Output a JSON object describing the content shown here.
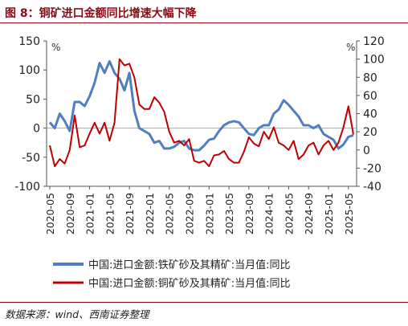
{
  "figure_title": "图 8：铜矿进口金额同比增速大幅下降",
  "source_note": "数据来源：wind、西南证券整理",
  "chart_data": {
    "type": "line",
    "left_unit": "%",
    "right_unit": "%",
    "left_axis": {
      "min": -100,
      "max": 150,
      "ticks": [
        -100,
        -50,
        0,
        50,
        100,
        150
      ]
    },
    "right_axis": {
      "min": -40,
      "max": 120,
      "ticks": [
        -40,
        -20,
        0,
        20,
        40,
        60,
        80,
        100,
        120
      ]
    },
    "x_ticks": [
      "2020-05",
      "2020-09",
      "2021-01",
      "2021-05",
      "2021-09",
      "2022-01",
      "2022-05",
      "2022-09",
      "2023-01",
      "2023-05",
      "2023-09",
      "2024-01",
      "2024-05",
      "2024-09",
      "2025-01",
      "2025-05"
    ],
    "months": [
      "2020-05",
      "2020-06",
      "2020-07",
      "2020-08",
      "2020-09",
      "2020-10",
      "2020-11",
      "2020-12",
      "2021-01",
      "2021-02",
      "2021-03",
      "2021-04",
      "2021-05",
      "2021-06",
      "2021-07",
      "2021-08",
      "2021-09",
      "2021-10",
      "2021-11",
      "2021-12",
      "2022-01",
      "2022-02",
      "2022-03",
      "2022-04",
      "2022-05",
      "2022-06",
      "2022-07",
      "2022-08",
      "2022-09",
      "2022-10",
      "2022-11",
      "2022-12",
      "2023-01",
      "2023-02",
      "2023-03",
      "2023-04",
      "2023-05",
      "2023-06",
      "2023-07",
      "2023-08",
      "2023-09",
      "2023-10",
      "2023-11",
      "2023-12",
      "2024-01",
      "2024-02",
      "2024-03",
      "2024-04",
      "2024-05",
      "2024-06",
      "2024-07",
      "2024-08",
      "2024-09",
      "2024-10",
      "2024-11",
      "2024-12",
      "2025-01",
      "2025-02",
      "2025-03",
      "2025-04",
      "2025-05",
      "2025-06"
    ],
    "series": [
      {
        "name": "中国:进口金额:铁矿砂及其精矿:当月值:同比",
        "axis": "left",
        "color": "#4f7fc1",
        "values": [
          10,
          0,
          25,
          12,
          -5,
          45,
          45,
          38,
          55,
          78,
          112,
          95,
          115,
          95,
          85,
          65,
          95,
          30,
          0,
          -5,
          -10,
          -25,
          -22,
          -35,
          -35,
          -32,
          -25,
          -22,
          -35,
          -38,
          -38,
          -30,
          -20,
          -18,
          -5,
          5,
          10,
          12,
          10,
          0,
          -10,
          -12,
          0,
          5,
          5,
          25,
          32,
          48,
          40,
          30,
          20,
          5,
          5,
          0,
          5,
          -10,
          -15,
          -20,
          -35,
          -28,
          -15,
          -12
        ]
      },
      {
        "name": "中国:进口金额:铜矿砂及其精矿:当月值:同比",
        "axis": "right",
        "color": "#c00000",
        "values": [
          5,
          -18,
          -10,
          -15,
          0,
          38,
          3,
          5,
          18,
          30,
          18,
          30,
          10,
          30,
          100,
          93,
          95,
          80,
          50,
          45,
          45,
          58,
          52,
          42,
          20,
          8,
          10,
          5,
          12,
          -12,
          -14,
          -12,
          -18,
          -6,
          -5,
          -1,
          -10,
          -14,
          -14,
          -2,
          14,
          7,
          4,
          20,
          12,
          25,
          8,
          5,
          0,
          10,
          -10,
          -5,
          5,
          8,
          -5,
          5,
          10,
          0,
          8,
          25,
          48,
          17
        ]
      }
    ]
  }
}
